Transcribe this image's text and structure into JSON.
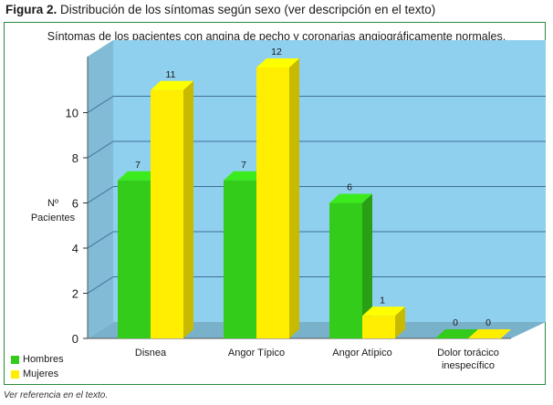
{
  "figure": {
    "label": "Figura 2.",
    "caption": "Distribución de los síntomas según sexo (ver descripción en el texto)"
  },
  "footnote": "Ver referencia en el texto.",
  "chart_data": {
    "type": "bar",
    "title": "Síntomas de los pacientes con angina de pecho y coronarias angiográficamente normales.",
    "ylabel_line1": "Nº",
    "ylabel_line2": "Pacientes",
    "xlabel": "",
    "categories": [
      [
        "Disnea"
      ],
      [
        "Angor Típico"
      ],
      [
        "Angor Atípico"
      ],
      [
        "Dolor torácico",
        "inespecífico"
      ]
    ],
    "series": [
      {
        "name": "Hombres",
        "color": "#33cc1a",
        "values": [
          7,
          7,
          6,
          0
        ]
      },
      {
        "name": "Mujeres",
        "color": "#ffee00",
        "values": [
          11,
          12,
          1,
          0
        ]
      }
    ],
    "ylim": [
      0,
      12
    ],
    "yticks": [
      0,
      2,
      4,
      6,
      8,
      10
    ],
    "grid": true,
    "legend_position": "bottom-left",
    "background_color": "#8fd0ee"
  }
}
